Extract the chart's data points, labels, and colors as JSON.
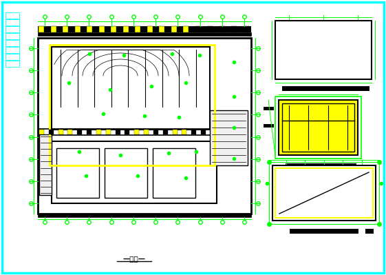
{
  "bg_color": "#ffffff",
  "cyan": "#00ffff",
  "yellow": "#ffff00",
  "green": "#00ff00",
  "black": "#000000",
  "gray": "#888888",
  "darkgray": "#333333",
  "fig_width": 5.61,
  "fig_height": 3.99,
  "title_text": "—建筑—"
}
